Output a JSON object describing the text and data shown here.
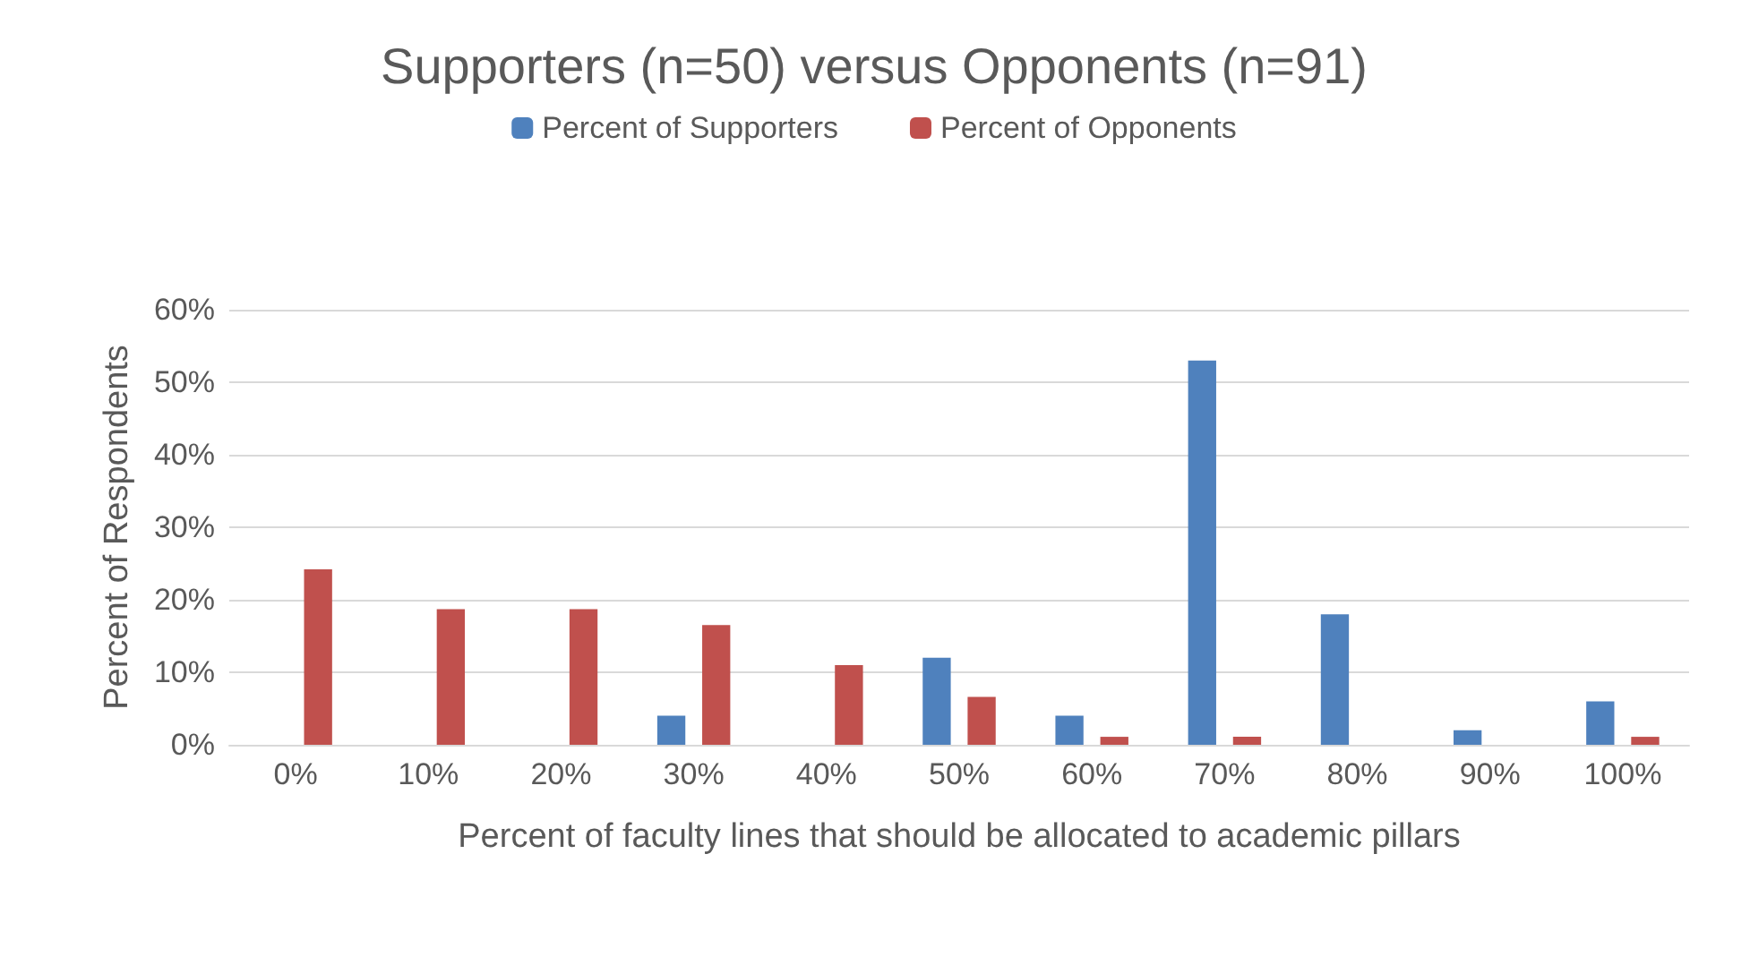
{
  "chart_data": {
    "type": "bar",
    "title": "Supporters (n=50) versus Opponents (n=91)",
    "xlabel": "Percent of faculty lines that should be allocated to academic pillars",
    "ylabel": "Percent of Respondents",
    "categories": [
      "0%",
      "10%",
      "20%",
      "30%",
      "40%",
      "50%",
      "60%",
      "70%",
      "80%",
      "90%",
      "100%"
    ],
    "series": [
      {
        "name": "Percent of Supporters",
        "color": "#4f81bd",
        "values": [
          0,
          0,
          0,
          4,
          0,
          12,
          4,
          53,
          18,
          2,
          6
        ]
      },
      {
        "name": "Percent of Opponents",
        "color": "#c0504d",
        "values": [
          24.2,
          18.7,
          18.7,
          16.5,
          11,
          6.6,
          1.1,
          1.1,
          0,
          0,
          1.1
        ]
      }
    ],
    "ylim": [
      0,
      60
    ],
    "yticks": [
      {
        "value": 0,
        "label": "0%"
      },
      {
        "value": 10,
        "label": "10%"
      },
      {
        "value": 20,
        "label": "20%"
      },
      {
        "value": 30,
        "label": "30%"
      },
      {
        "value": 40,
        "label": "40%"
      },
      {
        "value": 50,
        "label": "50%"
      },
      {
        "value": 60,
        "label": "60%"
      }
    ],
    "grid": "y",
    "legend": "top"
  }
}
